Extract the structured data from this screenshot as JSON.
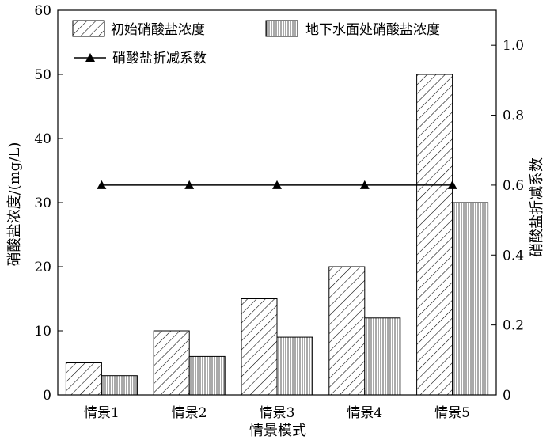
{
  "chart_data": {
    "type": "bar",
    "xlabel": "情景模式",
    "ylabel_left": "硝酸盐浓度/(mg/L)",
    "ylabel_right": "硝酸盐折减系数",
    "categories": [
      "情景1",
      "情景2",
      "情景3",
      "情景4",
      "情景5"
    ],
    "ylim_left": [
      0,
      60
    ],
    "yticks_left": [
      "0",
      "10",
      "20",
      "30",
      "40",
      "50",
      "60"
    ],
    "ylim_right": [
      0,
      1.1
    ],
    "yticks_right": [
      "0",
      "0.2",
      "0.4",
      "0.6",
      "0.8",
      "1.0"
    ],
    "grid": false,
    "legend_position": "top-left",
    "series": [
      {
        "name": "初始硝酸盐浓度",
        "kind": "bar",
        "pattern": "diagonal-hatch",
        "axis": "left",
        "values": [
          5,
          10,
          15,
          20,
          50
        ]
      },
      {
        "name": "地下水面处硝酸盐浓度",
        "kind": "bar",
        "pattern": "vertical-stripes",
        "axis": "left",
        "values": [
          3,
          6,
          9,
          12,
          30
        ]
      },
      {
        "name": "硝酸盐折减系数",
        "kind": "line",
        "marker": "triangle",
        "axis": "right",
        "values": [
          0.6,
          0.6,
          0.6,
          0.6,
          0.6
        ]
      }
    ]
  }
}
